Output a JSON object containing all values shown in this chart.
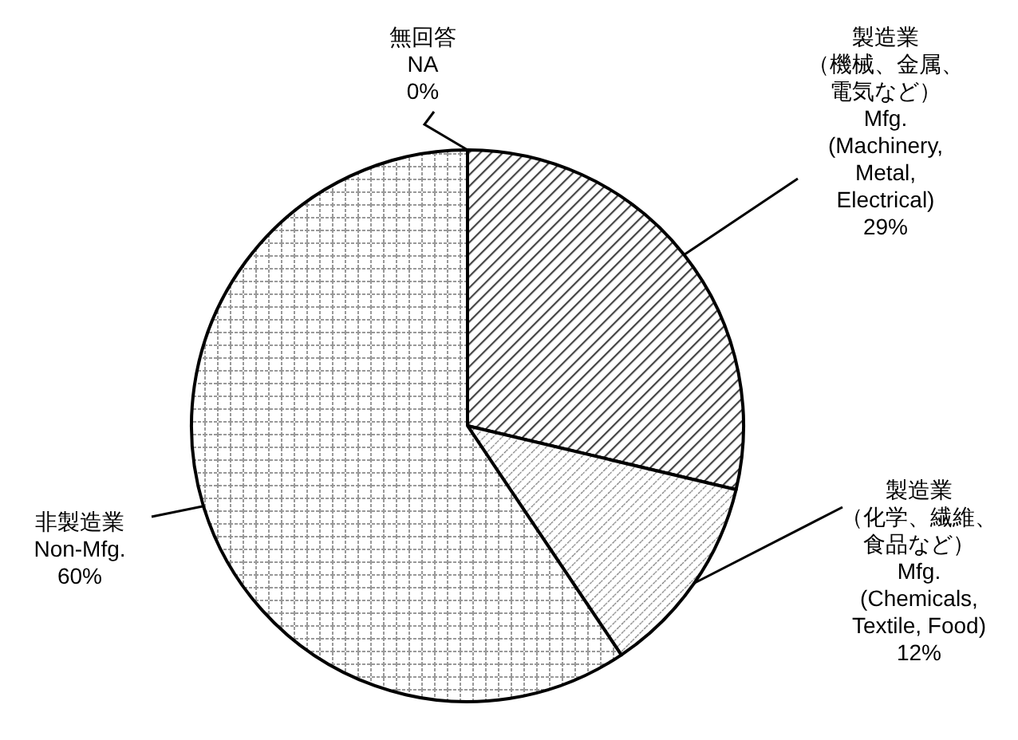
{
  "chart_data": {
    "type": "pie",
    "categories": [
      "製造業（機械、金属、電気など） Mfg. (Machinery, Metal, Electrical)",
      "製造業（化学、繊維、食品など） Mfg. (Chemicals, Textile, Food)",
      "非製造業 Non-Mfg.",
      "無回答 NA"
    ],
    "values": [
      29,
      12,
      60,
      0
    ],
    "value_labels": [
      "29%",
      "12%",
      "60%",
      "0%"
    ]
  }
}
